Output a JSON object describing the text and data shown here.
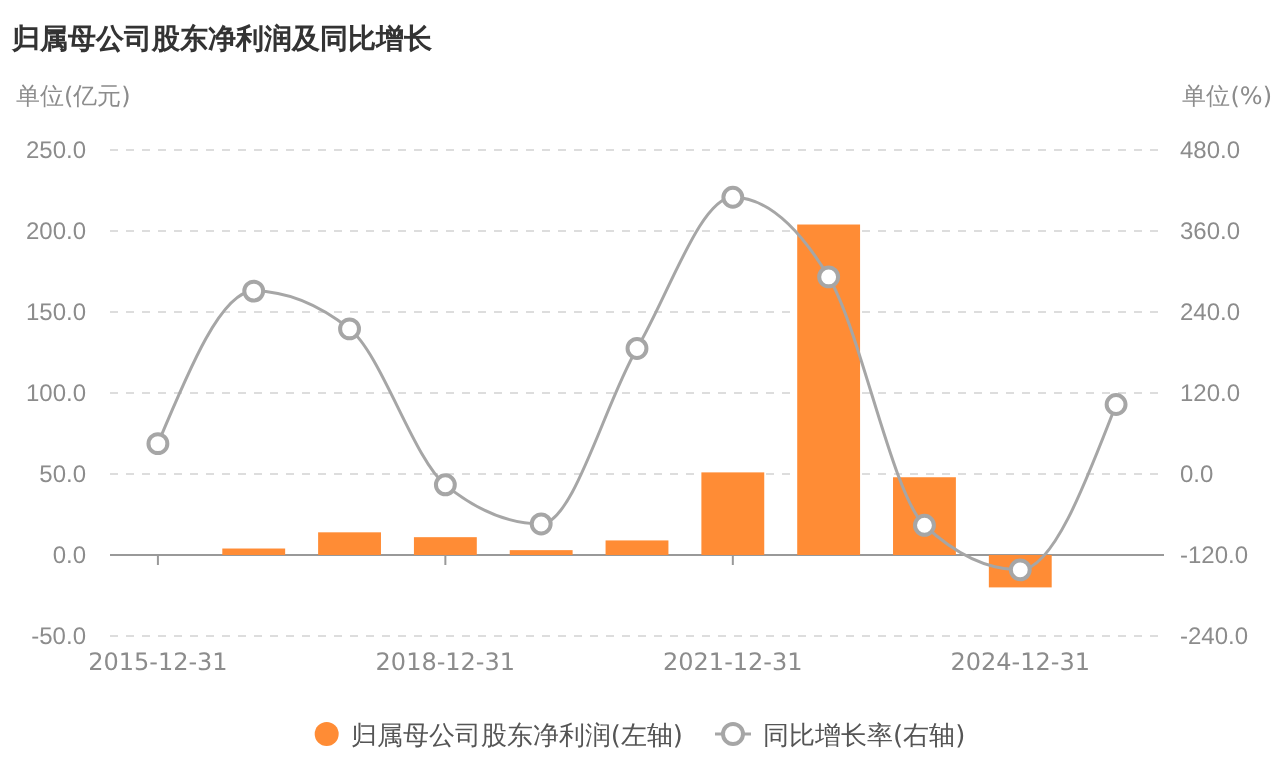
{
  "chart_data": {
    "type": "bar",
    "title": "归属母公司股东净利润及同比增长",
    "ylabel": "单位(亿元)",
    "y2label": "单位(%)",
    "categories": [
      "2015-12-31",
      null,
      null,
      "2018-12-31",
      null,
      null,
      "2021-12-31",
      null,
      null,
      "2024-12-31",
      null
    ],
    "series": [
      {
        "name": "归属母公司股东净利润(左轴)",
        "color": "#ff8c35",
        "values": [
          null,
          4,
          14,
          11,
          3,
          9,
          51,
          204,
          48,
          -20,
          null
        ]
      },
      {
        "name": "同比增长率(右轴)",
        "type": "line",
        "axis": "y2",
        "color": "#a6a6a6",
        "marker": "circle",
        "values": [
          45,
          271,
          215,
          -16,
          -74,
          186,
          410,
          292,
          -76,
          -142,
          103
        ]
      }
    ],
    "ylim": [
      -50,
      250
    ],
    "yticks": [
      {
        "value": -50,
        "label": "-50.0"
      },
      {
        "value": 0,
        "label": "0.0"
      },
      {
        "value": 50,
        "label": "50.0"
      },
      {
        "value": 100,
        "label": "100.0"
      },
      {
        "value": 150,
        "label": "150.0"
      },
      {
        "value": 200,
        "label": "200.0"
      },
      {
        "value": 250,
        "label": "250.0"
      }
    ],
    "y2lim": [
      -240,
      480
    ],
    "y2ticks": [
      {
        "value": -240,
        "label": "-240.0"
      },
      {
        "value": -120,
        "label": "-120.0"
      },
      {
        "value": 0,
        "label": "0.0"
      },
      {
        "value": 120,
        "label": "120.0"
      },
      {
        "value": 240,
        "label": "240.0"
      },
      {
        "value": 360,
        "label": "360.0"
      },
      {
        "value": 480,
        "label": "480.0"
      }
    ],
    "grid": "y",
    "legend": "bottom"
  }
}
